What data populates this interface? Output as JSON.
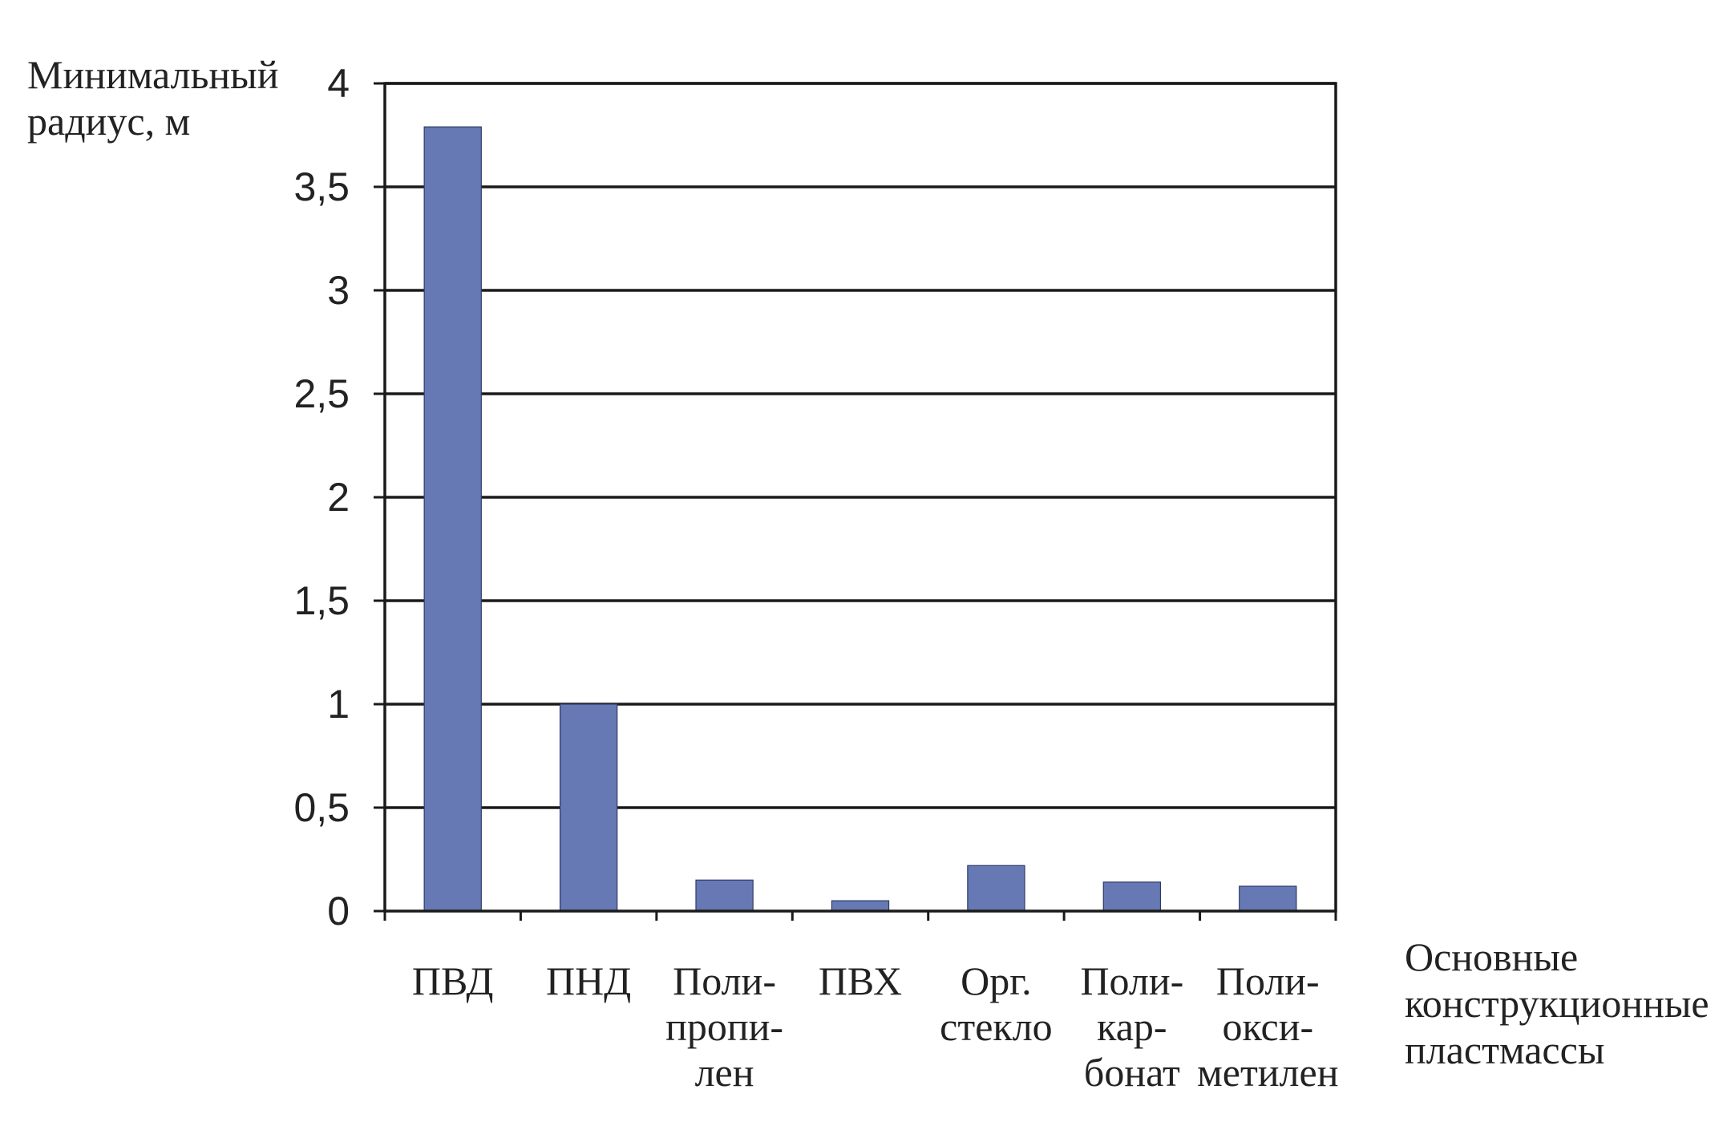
{
  "chart_data": {
    "type": "bar",
    "ylabel_lines": [
      "Минимальный",
      "радиус, м"
    ],
    "xlabel_lines": [
      "Основные",
      "конструкционные",
      "пластмассы"
    ],
    "categories": [
      [
        "ПВД"
      ],
      [
        "ПНД"
      ],
      [
        "Поли-",
        "пропи-",
        "лен"
      ],
      [
        "ПВХ"
      ],
      [
        "Орг.",
        "стекло"
      ],
      [
        "Поли-",
        "кар-",
        "бонат"
      ],
      [
        "Поли-",
        "окси-",
        "метилен"
      ]
    ],
    "values": [
      3.79,
      1.0,
      0.15,
      0.05,
      0.22,
      0.14,
      0.12
    ],
    "ylim": [
      0,
      4
    ],
    "yticks": [
      "0",
      "0,5",
      "1",
      "1,5",
      "2",
      "2,5",
      "3",
      "3,5",
      "4"
    ],
    "ytick_values": [
      0,
      0.5,
      1,
      1.5,
      2,
      2.5,
      3,
      3.5,
      4
    ],
    "grid": true,
    "bar_color": "#6779b4",
    "axis_color": "#1a1a1a"
  }
}
